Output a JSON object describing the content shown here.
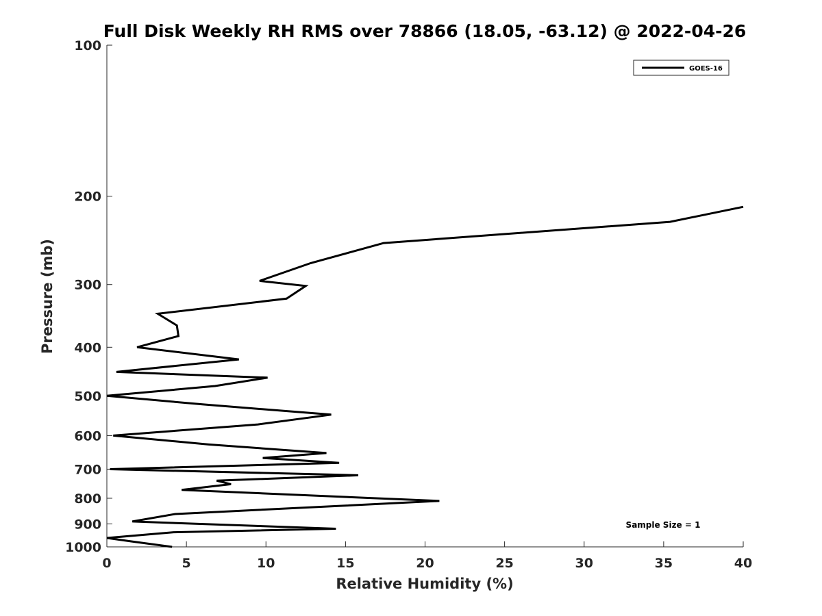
{
  "chart_data": {
    "type": "line",
    "title": "Full Disk Weekly RH RMS over 78866 (18.05, -63.12) @ 2022-04-26",
    "xlabel": "Relative Humidity (%)",
    "ylabel": "Pressure (mb)",
    "xlim": [
      0,
      40
    ],
    "ylim": [
      100,
      1000
    ],
    "y_scale": "log",
    "y_reversed": true,
    "x_ticks": [
      "0",
      "5",
      "10",
      "15",
      "20",
      "25",
      "30",
      "35",
      "40"
    ],
    "y_ticks": [
      "100",
      "200",
      "300",
      "400",
      "500",
      "600",
      "700",
      "800",
      "900",
      "1000"
    ],
    "grid": false,
    "legend_position": "top-right",
    "annotation": "Sample Size = 1",
    "series": [
      {
        "name": "GOES-16",
        "color": "#000000",
        "points": [
          [
            40.0,
            210
          ],
          [
            35.4,
            225
          ],
          [
            17.4,
            248
          ],
          [
            12.8,
            272
          ],
          [
            9.6,
            295
          ],
          [
            12.5,
            302
          ],
          [
            11.3,
            320
          ],
          [
            3.2,
            343
          ],
          [
            4.4,
            362
          ],
          [
            4.5,
            380
          ],
          [
            1.9,
            400
          ],
          [
            8.3,
            423
          ],
          [
            0.6,
            448
          ],
          [
            10.1,
            460
          ],
          [
            6.8,
            478
          ],
          [
            0.0,
            500
          ],
          [
            6.0,
            520
          ],
          [
            14.1,
            545
          ],
          [
            9.5,
            570
          ],
          [
            0.4,
            600
          ],
          [
            6.4,
            625
          ],
          [
            13.8,
            650
          ],
          [
            9.8,
            665
          ],
          [
            14.6,
            680
          ],
          [
            0.2,
            700
          ],
          [
            15.8,
            720
          ],
          [
            6.9,
            738
          ],
          [
            7.8,
            750
          ],
          [
            4.7,
            770
          ],
          [
            20.9,
            810
          ],
          [
            4.3,
            860
          ],
          [
            1.6,
            890
          ],
          [
            14.4,
            920
          ],
          [
            4.2,
            935
          ],
          [
            0.0,
            960
          ],
          [
            1.5,
            975
          ],
          [
            4.1,
            1000
          ]
        ]
      }
    ]
  }
}
